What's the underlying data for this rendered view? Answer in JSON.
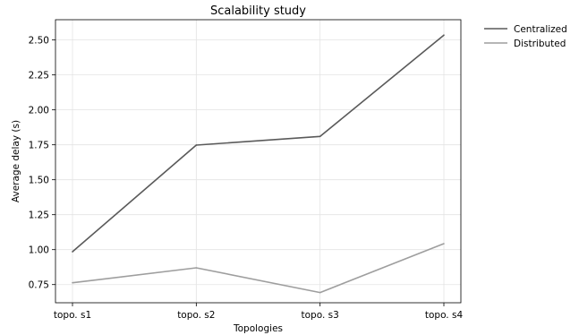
{
  "chart_data": {
    "type": "line",
    "title": "Scalability study",
    "xlabel": "Topologies",
    "ylabel": "Average delay (s)",
    "categories": [
      "topo. s1",
      "topo. s2",
      "topo. s3",
      "topo. s4"
    ],
    "ylim": [
      0.62,
      2.645
    ],
    "yticks": [
      "0.75",
      "1.00",
      "1.25",
      "1.50",
      "1.75",
      "2.00",
      "2.25",
      "2.50"
    ],
    "grid": true,
    "legend_position": "outside-top-right",
    "series": [
      {
        "name": "Centralized",
        "values": [
          0.985,
          1.748,
          1.81,
          2.535
        ],
        "color": "#5a5a5a"
      },
      {
        "name": "Distributed",
        "values": [
          0.763,
          0.87,
          0.693,
          1.043
        ],
        "color": "#9e9e9e"
      }
    ]
  }
}
